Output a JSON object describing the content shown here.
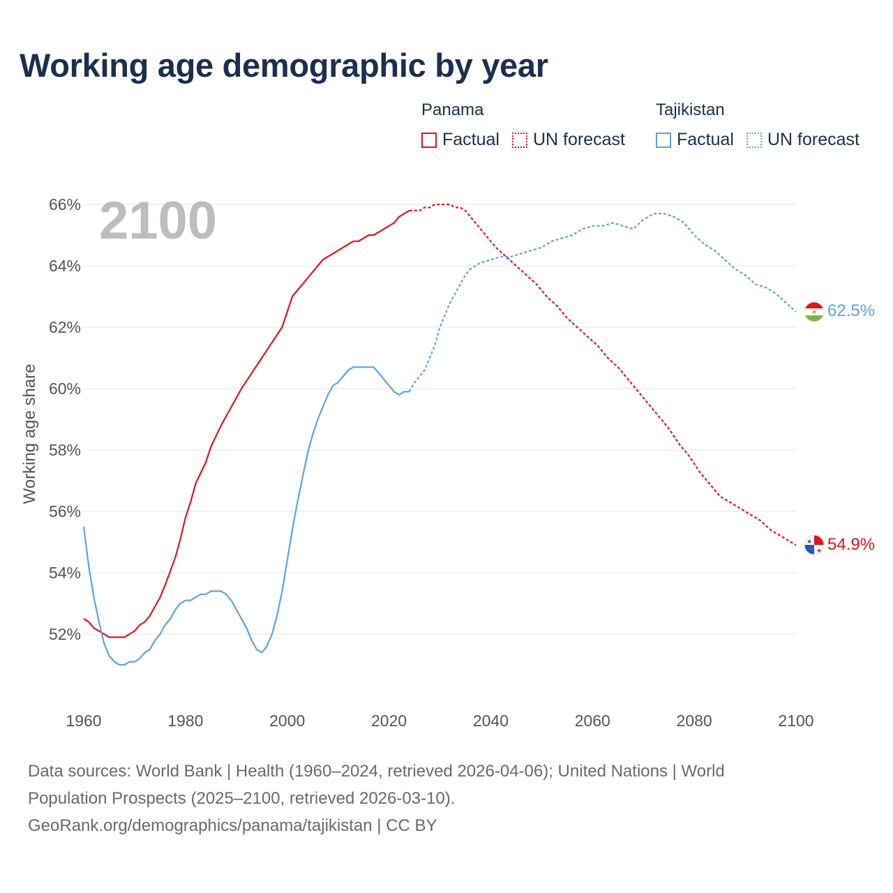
{
  "title": "Working age demographic by year",
  "legend": {
    "groups": [
      {
        "name": "Panama",
        "color": "#e3121e",
        "factual_label": "Factual",
        "forecast_label": "UN forecast"
      },
      {
        "name": "Tajikistan",
        "color": "#5ba4e0",
        "factual_label": "Factual",
        "forecast_label": "UN forecast"
      }
    ]
  },
  "footer": {
    "line1": "Data sources: World Bank | Health (1960–2024, retrieved 2026-04-06); United Nations | World",
    "line2": "Population Prospects (2025–2100, retrieved 2026-03-10).",
    "line3": "GeoRank.org/demographics/panama/tajikistan | CC BY"
  },
  "chart_data": {
    "type": "line",
    "title": "Working age demographic by year",
    "ylabel": "Working age share",
    "xlabel": "",
    "year_watermark": "2100",
    "xlim": [
      1960,
      2100
    ],
    "ylim": [
      50,
      66
    ],
    "x_ticks": [
      1960,
      1980,
      2000,
      2020,
      2040,
      2060,
      2080,
      2100
    ],
    "x_tick_labels": [
      "1960",
      "1980",
      "2000",
      "2020",
      "2040",
      "2060",
      "2080",
      "2100"
    ],
    "y_ticks": [
      52,
      54,
      56,
      58,
      60,
      62,
      64,
      66
    ],
    "y_tick_labels": [
      "52%",
      "54%",
      "56%",
      "58%",
      "60%",
      "62%",
      "64%",
      "66%"
    ],
    "grid": true,
    "forecast_start": 2024,
    "series": [
      {
        "name": "Panama",
        "color": "#e3121e",
        "end_label": "54.9%",
        "flag_icon": "panama-flag-icon",
        "points": [
          [
            1960,
            52.5
          ],
          [
            1961,
            52.4
          ],
          [
            1962,
            52.2
          ],
          [
            1963,
            52.1
          ],
          [
            1964,
            52.0
          ],
          [
            1965,
            51.9
          ],
          [
            1966,
            51.9
          ],
          [
            1967,
            51.9
          ],
          [
            1968,
            51.9
          ],
          [
            1970,
            52.1
          ],
          [
            1971,
            52.3
          ],
          [
            1972,
            52.4
          ],
          [
            1973,
            52.6
          ],
          [
            1975,
            53.2
          ],
          [
            1976,
            53.6
          ],
          [
            1978,
            54.5
          ],
          [
            1979,
            55.1
          ],
          [
            1980,
            55.8
          ],
          [
            1981,
            56.3
          ],
          [
            1982,
            56.9
          ],
          [
            1984,
            57.6
          ],
          [
            1985,
            58.1
          ],
          [
            1987,
            58.8
          ],
          [
            1989,
            59.4
          ],
          [
            1990,
            59.7
          ],
          [
            1991,
            60.0
          ],
          [
            1993,
            60.5
          ],
          [
            1995,
            61.0
          ],
          [
            1997,
            61.5
          ],
          [
            1999,
            62.0
          ],
          [
            2001,
            63.0
          ],
          [
            2003,
            63.4
          ],
          [
            2005,
            63.8
          ],
          [
            2007,
            64.2
          ],
          [
            2009,
            64.4
          ],
          [
            2011,
            64.6
          ],
          [
            2013,
            64.8
          ],
          [
            2014,
            64.8
          ],
          [
            2016,
            65.0
          ],
          [
            2017,
            65.0
          ],
          [
            2019,
            65.2
          ],
          [
            2021,
            65.4
          ],
          [
            2022,
            65.6
          ],
          [
            2024,
            65.8
          ]
        ],
        "forecast_points": [
          [
            2024,
            65.8
          ],
          [
            2026,
            65.8
          ],
          [
            2027,
            65.9
          ],
          [
            2028,
            65.9
          ],
          [
            2029,
            66.0
          ],
          [
            2031,
            66.0
          ],
          [
            2032,
            66.0
          ],
          [
            2033,
            65.9
          ],
          [
            2034,
            65.9
          ],
          [
            2035,
            65.8
          ],
          [
            2037,
            65.4
          ],
          [
            2039,
            65.0
          ],
          [
            2041,
            64.6
          ],
          [
            2043,
            64.3
          ],
          [
            2045,
            64.0
          ],
          [
            2047,
            63.7
          ],
          [
            2049,
            63.4
          ],
          [
            2051,
            63.0
          ],
          [
            2053,
            62.7
          ],
          [
            2055,
            62.3
          ],
          [
            2057,
            62.0
          ],
          [
            2059,
            61.7
          ],
          [
            2061,
            61.4
          ],
          [
            2063,
            61.0
          ],
          [
            2065,
            60.7
          ],
          [
            2067,
            60.3
          ],
          [
            2069,
            59.9
          ],
          [
            2071,
            59.5
          ],
          [
            2073,
            59.1
          ],
          [
            2075,
            58.7
          ],
          [
            2077,
            58.2
          ],
          [
            2079,
            57.8
          ],
          [
            2081,
            57.3
          ],
          [
            2083,
            56.9
          ],
          [
            2085,
            56.5
          ],
          [
            2087,
            56.3
          ],
          [
            2089,
            56.1
          ],
          [
            2091,
            55.9
          ],
          [
            2093,
            55.7
          ],
          [
            2095,
            55.4
          ],
          [
            2097,
            55.2
          ],
          [
            2099,
            55.0
          ],
          [
            2100,
            54.9
          ]
        ]
      },
      {
        "name": "Tajikistan",
        "color": "#5ba4e0",
        "end_label": "62.5%",
        "flag_icon": "tajikistan-flag-icon",
        "points": [
          [
            1960,
            55.5
          ],
          [
            1961,
            54.2
          ],
          [
            1962,
            53.2
          ],
          [
            1963,
            52.4
          ],
          [
            1964,
            51.7
          ],
          [
            1965,
            51.3
          ],
          [
            1966,
            51.1
          ],
          [
            1967,
            51.0
          ],
          [
            1968,
            51.0
          ],
          [
            1969,
            51.1
          ],
          [
            1970,
            51.1
          ],
          [
            1971,
            51.2
          ],
          [
            1972,
            51.4
          ],
          [
            1973,
            51.5
          ],
          [
            1974,
            51.8
          ],
          [
            1975,
            52.0
          ],
          [
            1976,
            52.3
          ],
          [
            1977,
            52.5
          ],
          [
            1978,
            52.8
          ],
          [
            1979,
            53.0
          ],
          [
            1980,
            53.1
          ],
          [
            1981,
            53.1
          ],
          [
            1982,
            53.2
          ],
          [
            1983,
            53.3
          ],
          [
            1984,
            53.3
          ],
          [
            1985,
            53.4
          ],
          [
            1986,
            53.4
          ],
          [
            1987,
            53.4
          ],
          [
            1988,
            53.3
          ],
          [
            1989,
            53.1
          ],
          [
            1990,
            52.8
          ],
          [
            1991,
            52.5
          ],
          [
            1992,
            52.2
          ],
          [
            1993,
            51.8
          ],
          [
            1994,
            51.5
          ],
          [
            1995,
            51.4
          ],
          [
            1996,
            51.6
          ],
          [
            1997,
            52.0
          ],
          [
            1998,
            52.6
          ],
          [
            1999,
            53.4
          ],
          [
            2000,
            54.4
          ],
          [
            2001,
            55.4
          ],
          [
            2002,
            56.3
          ],
          [
            2003,
            57.1
          ],
          [
            2004,
            57.9
          ],
          [
            2005,
            58.5
          ],
          [
            2006,
            59.0
          ],
          [
            2007,
            59.4
          ],
          [
            2008,
            59.8
          ],
          [
            2009,
            60.1
          ],
          [
            2010,
            60.2
          ],
          [
            2011,
            60.4
          ],
          [
            2012,
            60.6
          ],
          [
            2013,
            60.7
          ],
          [
            2014,
            60.7
          ],
          [
            2015,
            60.7
          ],
          [
            2016,
            60.7
          ],
          [
            2017,
            60.7
          ],
          [
            2018,
            60.5
          ],
          [
            2019,
            60.3
          ],
          [
            2020,
            60.1
          ],
          [
            2021,
            59.9
          ],
          [
            2022,
            59.8
          ],
          [
            2023,
            59.9
          ],
          [
            2024,
            59.9
          ]
        ],
        "forecast_points": [
          [
            2024,
            59.9
          ],
          [
            2025,
            60.2
          ],
          [
            2026,
            60.4
          ],
          [
            2027,
            60.6
          ],
          [
            2028,
            61.0
          ],
          [
            2029,
            61.4
          ],
          [
            2030,
            62.0
          ],
          [
            2031,
            62.4
          ],
          [
            2032,
            62.8
          ],
          [
            2033,
            63.1
          ],
          [
            2034,
            63.4
          ],
          [
            2035,
            63.7
          ],
          [
            2036,
            63.9
          ],
          [
            2038,
            64.1
          ],
          [
            2040,
            64.2
          ],
          [
            2042,
            64.3
          ],
          [
            2044,
            64.3
          ],
          [
            2046,
            64.4
          ],
          [
            2048,
            64.5
          ],
          [
            2050,
            64.6
          ],
          [
            2052,
            64.8
          ],
          [
            2054,
            64.9
          ],
          [
            2056,
            65.0
          ],
          [
            2058,
            65.2
          ],
          [
            2060,
            65.3
          ],
          [
            2062,
            65.3
          ],
          [
            2064,
            65.4
          ],
          [
            2066,
            65.3
          ],
          [
            2068,
            65.2
          ],
          [
            2070,
            65.5
          ],
          [
            2072,
            65.7
          ],
          [
            2074,
            65.7
          ],
          [
            2076,
            65.6
          ],
          [
            2078,
            65.4
          ],
          [
            2080,
            65.0
          ],
          [
            2082,
            64.7
          ],
          [
            2084,
            64.5
          ],
          [
            2086,
            64.2
          ],
          [
            2088,
            63.9
          ],
          [
            2090,
            63.7
          ],
          [
            2092,
            63.4
          ],
          [
            2094,
            63.3
          ],
          [
            2096,
            63.1
          ],
          [
            2098,
            62.8
          ],
          [
            2100,
            62.5
          ]
        ]
      }
    ]
  }
}
